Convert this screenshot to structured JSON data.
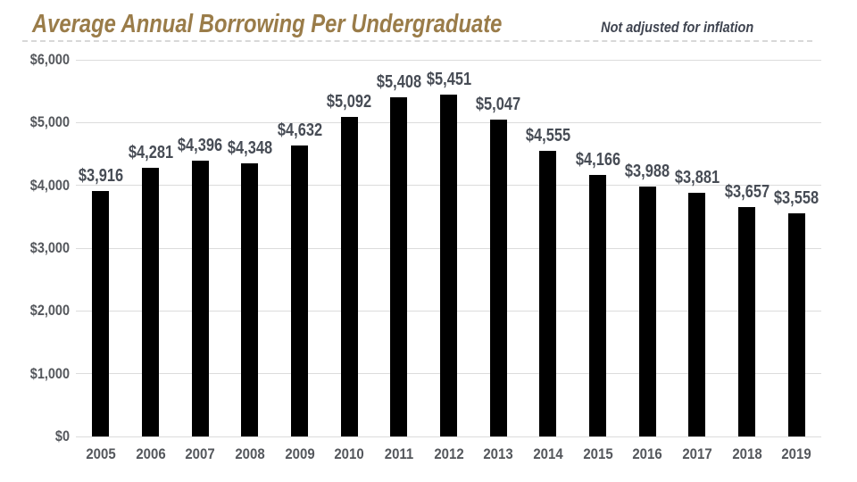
{
  "header": {
    "title": "Average Annual Borrowing Per Undergraduate",
    "note": "Not adjusted for inflation"
  },
  "colors": {
    "title_gold": "#9a7c49",
    "note_gray": "#3f4450",
    "bar_black": "#000000",
    "value_label_gray": "#474c55",
    "axis_label_gray": "#54575c",
    "gridline_gray": "#dcdcdc",
    "dashed_rule_gray": "#d8d8d8"
  },
  "chart_data": {
    "type": "bar",
    "title": "Average Annual Borrowing Per Undergraduate",
    "subtitle": "Not adjusted for inflation",
    "categories": [
      "2005",
      "2006",
      "2007",
      "2008",
      "2009",
      "2010",
      "2011",
      "2012",
      "2013",
      "2014",
      "2015",
      "2016",
      "2017",
      "2018",
      "2019"
    ],
    "values": [
      3916,
      4281,
      4396,
      4348,
      4632,
      5092,
      5408,
      5451,
      5047,
      4555,
      4166,
      3988,
      3881,
      3657,
      3558
    ],
    "value_labels": [
      "$3,916",
      "$4,281",
      "$4,396",
      "$4,348",
      "$4,632",
      "$5,092",
      "$5,408",
      "$5,451",
      "$5,047",
      "$4,555",
      "$4,166",
      "$3,988",
      "$3,881",
      "$3,657",
      "$3,558"
    ],
    "xlabel": "",
    "ylabel": "",
    "ylim": [
      0,
      6000
    ],
    "ytick_interval": 1000,
    "ytick_labels": [
      "$0",
      "$1,000",
      "$2,000",
      "$3,000",
      "$4,000",
      "$5,000",
      "$6,000"
    ],
    "grid": true,
    "legend": "none",
    "bar_color": "#000000"
  }
}
